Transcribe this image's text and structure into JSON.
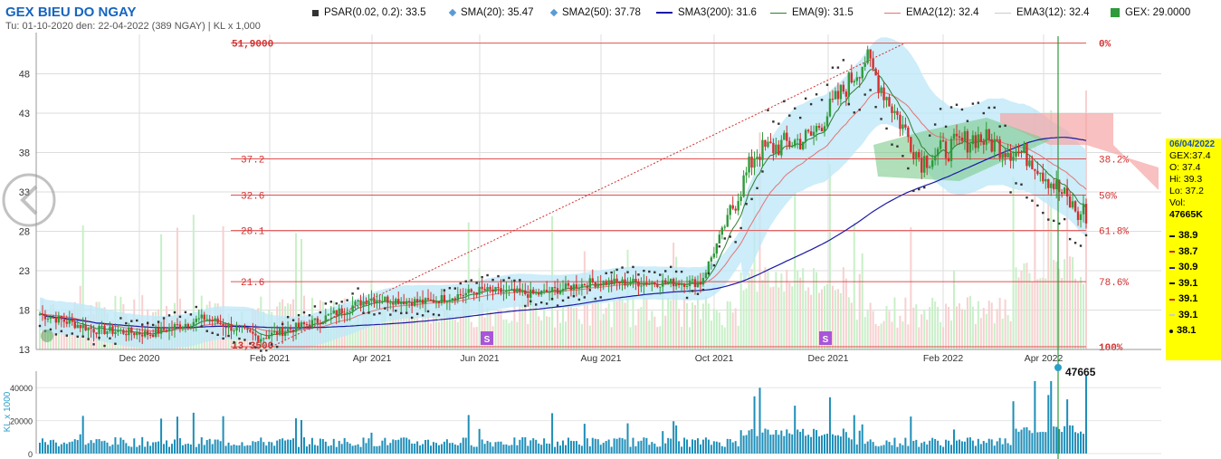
{
  "title": "GEX BIEU DO NGAY",
  "subtitle": "Tu: 01-10-2020 den: 22-04-2022 (389 NGAY) | KL x 1,000",
  "legend": [
    {
      "label": "PSAR(0.02, 0.2): 33.5",
      "color": "#333333",
      "icon": "square-icon"
    },
    {
      "label": "SMA(20): 35.47",
      "color": "#5b9bd5",
      "icon": "diamond-icon"
    },
    {
      "label": "SMA2(50): 37.78",
      "color": "#5b9bd5",
      "icon": "diamond-icon"
    },
    {
      "label": "SMA3(200): 31.6",
      "color": "#1a1aa6",
      "icon": "line-icon"
    },
    {
      "label": "EMA(9): 31.5",
      "color": "#2e7d32",
      "icon": "line-icon"
    },
    {
      "label": "EMA2(12): 32.4",
      "color": "#e57373",
      "icon": "line-icon"
    },
    {
      "label": "EMA3(12): 32.4",
      "color": "#cccccc",
      "icon": "line-icon"
    },
    {
      "label": "GEX: 29.0000",
      "color": "#2e9a3a",
      "icon": "square-icon"
    }
  ],
  "chart_data": [
    {
      "type": "candlestick",
      "ylim": [
        13,
        53
      ],
      "y_ticks": [
        13,
        18,
        23,
        28,
        33,
        38,
        43,
        48
      ],
      "x_ticks": [
        "Dec 2020",
        "Feb 2021",
        "Apr 2021",
        "Jun 2021",
        "Aug 2021",
        "Oct 2021",
        "Dec 2021",
        "Feb 2022",
        "Apr 2022"
      ],
      "price_path": [
        [
          "Oct 2020",
          17.5
        ],
        [
          "Nov 2020",
          15.5
        ],
        [
          "Dec 2020",
          15.0
        ],
        [
          "Jan 2021",
          17.0
        ],
        [
          "Feb 2021",
          14.5
        ],
        [
          "Mar 2021",
          16.5
        ],
        [
          "Apr 2021",
          19.5
        ],
        [
          "May 2021",
          19.0
        ],
        [
          "Jun 2021",
          20.5
        ],
        [
          "Jul 2021",
          20.0
        ],
        [
          "Aug 2021",
          21.5
        ],
        [
          "Sep 2021",
          21.5
        ],
        [
          "Oct 2021",
          21.5
        ],
        [
          "Nov 2021",
          38.0
        ],
        [
          "Dec 2021",
          40.0
        ],
        [
          "Jan 2022",
          50.0
        ],
        [
          "Feb 2022",
          37.0
        ],
        [
          "Mar 2022",
          40.0
        ],
        [
          "Apr 2022",
          37.4
        ],
        [
          "Apr 22 2022",
          29.0
        ]
      ],
      "fibonacci": {
        "high": "51,9000",
        "low": "13,3500",
        "levels": [
          {
            "value": 51.9,
            "label": "0%"
          },
          {
            "value": 37.2,
            "label": "38.2%",
            "left": "37.2"
          },
          {
            "value": 32.6,
            "label": "50%",
            "left": "32.6"
          },
          {
            "value": 28.1,
            "label": "61.8%",
            "left": "28.1"
          },
          {
            "value": 21.6,
            "label": "78.6%",
            "left": "21.6"
          },
          {
            "value": 13.35,
            "label": "100%"
          }
        ]
      },
      "markers": [
        "S",
        "S"
      ]
    },
    {
      "type": "bar",
      "ylabel": "KL x 1000",
      "ylim": [
        0,
        50000
      ],
      "y_ticks": [
        "0",
        "20000",
        "40000"
      ],
      "last_value": "47665"
    }
  ],
  "info_box": {
    "date": "06/04/2022",
    "rows": [
      "GEX:37.4",
      "O: 37.4",
      "Hi: 39.3",
      "Lo: 37.2",
      "Vol:"
    ],
    "vol": "47665K",
    "levels": [
      {
        "value": "38.9",
        "color": "#111111"
      },
      {
        "value": "38.7",
        "color": "#c62828"
      },
      {
        "value": "30.9",
        "color": "#1a1aa6"
      },
      {
        "value": "39.1",
        "color": "#111111"
      },
      {
        "value": "39.1",
        "color": "#c62828"
      },
      {
        "value": "39.1",
        "color": "#cccccc"
      },
      {
        "value": "38.1",
        "color": "#111111"
      }
    ]
  }
}
